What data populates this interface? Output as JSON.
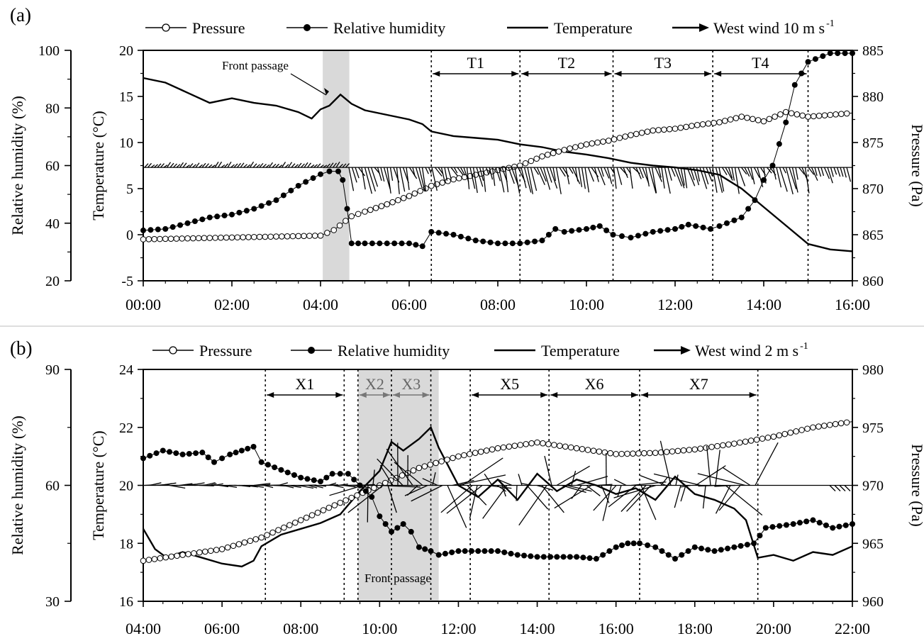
{
  "chart_data": [
    {
      "panel_label": "(a)",
      "type": "line",
      "x_axis": {
        "ticks": [
          "00:00",
          "02:00",
          "04:00",
          "06:00",
          "08:00",
          "10:00",
          "12:00",
          "14:00",
          "16:00"
        ],
        "range_hours": [
          0,
          16
        ]
      },
      "axes": {
        "rh": {
          "label": "Relative humidity (%)",
          "range": [
            20,
            100
          ],
          "ticks": [
            20,
            40,
            60,
            80,
            100
          ]
        },
        "temp": {
          "label": "Temperature (°C)",
          "range": [
            -5,
            20
          ],
          "ticks": [
            -5,
            0,
            5,
            10,
            15,
            20
          ]
        },
        "pressure": {
          "label": "Pressure (Pa)",
          "range": [
            860,
            885
          ],
          "ticks": [
            860,
            865,
            870,
            875,
            880,
            885
          ]
        }
      },
      "legend": [
        {
          "key": "pressure",
          "label": "Pressure"
        },
        {
          "key": "rh",
          "label": "Relative humidity"
        },
        {
          "key": "temp",
          "label": "Temperature"
        },
        {
          "key": "wind",
          "label": "West wind 10 m s",
          "sup": "-1"
        }
      ],
      "shaded_band": {
        "start": 4.05,
        "end": 4.65,
        "label": "Front passage"
      },
      "periods": [
        {
          "label": "T1",
          "start": 6.5,
          "end": 8.5
        },
        {
          "label": "T2",
          "start": 8.5,
          "end": 10.6
        },
        {
          "label": "T3",
          "start": 10.6,
          "end": 12.85
        },
        {
          "label": "T4",
          "start": 12.85,
          "end": 15.0
        }
      ],
      "wind_baseline": 7.3,
      "series": {
        "temp": [
          [
            0,
            17
          ],
          [
            0.5,
            16.5
          ],
          [
            1,
            15.4
          ],
          [
            1.5,
            14.3
          ],
          [
            2,
            14.8
          ],
          [
            2.5,
            14.3
          ],
          [
            3,
            14
          ],
          [
            3.5,
            13.3
          ],
          [
            3.8,
            12.6
          ],
          [
            4,
            13.6
          ],
          [
            4.2,
            14
          ],
          [
            4.45,
            15.2
          ],
          [
            4.7,
            14.2
          ],
          [
            5,
            13.5
          ],
          [
            5.5,
            13
          ],
          [
            6,
            12.5
          ],
          [
            6.3,
            12
          ],
          [
            6.5,
            11.2
          ],
          [
            7,
            10.7
          ],
          [
            7.5,
            10.5
          ],
          [
            8,
            10.3
          ],
          [
            8.5,
            9.8
          ],
          [
            9,
            9.5
          ],
          [
            9.5,
            9
          ],
          [
            10,
            8.7
          ],
          [
            10.5,
            8.3
          ],
          [
            11,
            7.8
          ],
          [
            11.5,
            7.5
          ],
          [
            12,
            7.3
          ],
          [
            12.5,
            7
          ],
          [
            13,
            6.5
          ],
          [
            13.5,
            5
          ],
          [
            14,
            3
          ],
          [
            14.5,
            1
          ],
          [
            15,
            -1
          ],
          [
            15.5,
            -1.6
          ],
          [
            16,
            -1.8
          ]
        ],
        "rh": [
          [
            0,
            37.5
          ],
          [
            0.5,
            38
          ],
          [
            1,
            40
          ],
          [
            1.5,
            42
          ],
          [
            2,
            43
          ],
          [
            2.5,
            45
          ],
          [
            3,
            48
          ],
          [
            3.5,
            53
          ],
          [
            4,
            57
          ],
          [
            4.2,
            58
          ],
          [
            4.4,
            58
          ],
          [
            4.5,
            55
          ],
          [
            4.6,
            45
          ],
          [
            4.7,
            33
          ],
          [
            5,
            33
          ],
          [
            5.5,
            33
          ],
          [
            6,
            33
          ],
          [
            6.3,
            32
          ],
          [
            6.5,
            37
          ],
          [
            7,
            36
          ],
          [
            7.5,
            34
          ],
          [
            8,
            33
          ],
          [
            8.5,
            33
          ],
          [
            9,
            34
          ],
          [
            9.3,
            38
          ],
          [
            9.5,
            37
          ],
          [
            10,
            38
          ],
          [
            10.3,
            39
          ],
          [
            10.6,
            36
          ],
          [
            11,
            35
          ],
          [
            11.5,
            37
          ],
          [
            12,
            38
          ],
          [
            12.3,
            39.5
          ],
          [
            12.8,
            38
          ],
          [
            13,
            39
          ],
          [
            13.5,
            42
          ],
          [
            13.8,
            48
          ],
          [
            14,
            55
          ],
          [
            14.2,
            60
          ],
          [
            14.5,
            75
          ],
          [
            14.7,
            88
          ],
          [
            15,
            96
          ],
          [
            15.5,
            99
          ],
          [
            16,
            99
          ]
        ],
        "pressure": [
          [
            0,
            864.5
          ],
          [
            1,
            864.6
          ],
          [
            2,
            864.7
          ],
          [
            3,
            864.8
          ],
          [
            4,
            864.9
          ],
          [
            4.3,
            865.5
          ],
          [
            4.7,
            867
          ],
          [
            5,
            867.5
          ],
          [
            5.5,
            868.3
          ],
          [
            6,
            869.2
          ],
          [
            6.5,
            870.3
          ],
          [
            7,
            871
          ],
          [
            7.5,
            871.5
          ],
          [
            8,
            872
          ],
          [
            8.5,
            872.5
          ],
          [
            9,
            873.5
          ],
          [
            9.5,
            874.2
          ],
          [
            10,
            874.8
          ],
          [
            10.5,
            875.2
          ],
          [
            11,
            875.8
          ],
          [
            11.5,
            876.3
          ],
          [
            12,
            876.5
          ],
          [
            12.5,
            876.9
          ],
          [
            13,
            877.2
          ],
          [
            13.5,
            877.8
          ],
          [
            14,
            877.3
          ],
          [
            14.5,
            878.3
          ],
          [
            15,
            877.8
          ],
          [
            15.5,
            878
          ],
          [
            16,
            878.2
          ]
        ]
      }
    },
    {
      "panel_label": "(b)",
      "type": "line",
      "x_axis": {
        "ticks": [
          "04:00",
          "06:00",
          "08:00",
          "10:00",
          "12:00",
          "14:00",
          "16:00",
          "18:00",
          "20:00",
          "22:00"
        ],
        "range_hours": [
          4,
          22
        ]
      },
      "axes": {
        "rh": {
          "label": "Relative humidity (%)",
          "range": [
            30,
            90
          ],
          "ticks": [
            30,
            60,
            90
          ]
        },
        "temp": {
          "label": "Temperature (°C)",
          "range": [
            16,
            24
          ],
          "ticks": [
            16,
            18,
            20,
            22,
            24
          ]
        },
        "pressure": {
          "label": "Pressure (Pa)",
          "range": [
            960,
            980
          ],
          "ticks": [
            960,
            965,
            970,
            975,
            980
          ]
        }
      },
      "legend": [
        {
          "key": "pressure",
          "label": "Pressure"
        },
        {
          "key": "rh",
          "label": "Relative humidity"
        },
        {
          "key": "temp",
          "label": "Temperature"
        },
        {
          "key": "wind",
          "label": "West wind 2 m s",
          "sup": "-1"
        }
      ],
      "shaded_band": {
        "start": 9.45,
        "end": 11.5,
        "label": "Front passage"
      },
      "periods": [
        {
          "label": "X1",
          "start": 7.1,
          "end": 9.1
        },
        {
          "label": "X2",
          "start": 9.45,
          "end": 10.3,
          "muted": true
        },
        {
          "label": "X3",
          "start": 10.3,
          "end": 11.3,
          "muted": true
        },
        {
          "label": "X5",
          "start": 12.3,
          "end": 14.3
        },
        {
          "label": "X6",
          "start": 14.3,
          "end": 16.6
        },
        {
          "label": "X7",
          "start": 16.6,
          "end": 19.6
        }
      ],
      "wind_baseline": 20,
      "series": {
        "temp": [
          [
            4,
            18.5
          ],
          [
            4.3,
            17.8
          ],
          [
            4.6,
            17.5
          ],
          [
            5,
            17.7
          ],
          [
            5.5,
            17.5
          ],
          [
            6,
            17.3
          ],
          [
            6.5,
            17.2
          ],
          [
            6.8,
            17.4
          ],
          [
            7,
            17.9
          ],
          [
            7.5,
            18.3
          ],
          [
            8,
            18.5
          ],
          [
            8.5,
            18.7
          ],
          [
            9,
            19
          ],
          [
            9.5,
            19.8
          ],
          [
            10,
            20.5
          ],
          [
            10.3,
            21.5
          ],
          [
            10.6,
            21.2
          ],
          [
            11,
            21.6
          ],
          [
            11.3,
            22
          ],
          [
            11.5,
            21.3
          ],
          [
            12,
            20
          ],
          [
            12.5,
            19.6
          ],
          [
            13,
            20.2
          ],
          [
            13.5,
            19.5
          ],
          [
            14,
            20.4
          ],
          [
            14.5,
            19.8
          ],
          [
            15,
            20.2
          ],
          [
            15.5,
            20
          ],
          [
            16,
            19.7
          ],
          [
            16.5,
            19.9
          ],
          [
            17,
            19.5
          ],
          [
            17.5,
            20.3
          ],
          [
            18,
            19.7
          ],
          [
            18.5,
            19.5
          ],
          [
            19,
            19.2
          ],
          [
            19.3,
            18.8
          ],
          [
            19.6,
            17.5
          ],
          [
            20,
            17.6
          ],
          [
            20.5,
            17.4
          ],
          [
            21,
            17.7
          ],
          [
            21.5,
            17.6
          ],
          [
            22,
            17.9
          ]
        ],
        "rh": [
          [
            4,
            67
          ],
          [
            4.5,
            69
          ],
          [
            5,
            68
          ],
          [
            5.5,
            68.5
          ],
          [
            5.8,
            66
          ],
          [
            6.2,
            68
          ],
          [
            6.5,
            69
          ],
          [
            6.8,
            70
          ],
          [
            7,
            66
          ],
          [
            7.5,
            64
          ],
          [
            8,
            62
          ],
          [
            8.5,
            61
          ],
          [
            8.8,
            63
          ],
          [
            9.2,
            63
          ],
          [
            9.5,
            60
          ],
          [
            9.8,
            57
          ],
          [
            10,
            52
          ],
          [
            10.3,
            48
          ],
          [
            10.6,
            50
          ],
          [
            10.8,
            48
          ],
          [
            11,
            44
          ],
          [
            11.3,
            43
          ],
          [
            11.5,
            42
          ],
          [
            12,
            43
          ],
          [
            12.5,
            43
          ],
          [
            13,
            43
          ],
          [
            13.5,
            42
          ],
          [
            14,
            41.5
          ],
          [
            14.5,
            41.5
          ],
          [
            15,
            41.5
          ],
          [
            15.5,
            41
          ],
          [
            16,
            44
          ],
          [
            16.3,
            45
          ],
          [
            16.6,
            45
          ],
          [
            17,
            44
          ],
          [
            17.5,
            41
          ],
          [
            18,
            44
          ],
          [
            18.5,
            43
          ],
          [
            19,
            44
          ],
          [
            19.5,
            45
          ],
          [
            19.8,
            49
          ],
          [
            20.5,
            50
          ],
          [
            21,
            51
          ],
          [
            21.5,
            49
          ],
          [
            22,
            50
          ]
        ],
        "pressure": [
          [
            4,
            963.5
          ],
          [
            5,
            964
          ],
          [
            6,
            964.5
          ],
          [
            7,
            965.5
          ],
          [
            8,
            967
          ],
          [
            9,
            968.5
          ],
          [
            10,
            970
          ],
          [
            11,
            971.5
          ],
          [
            12,
            972.5
          ],
          [
            13,
            973.2
          ],
          [
            14,
            973.7
          ],
          [
            15,
            973.2
          ],
          [
            16,
            972.7
          ],
          [
            17,
            972.8
          ],
          [
            18,
            973.1
          ],
          [
            19,
            973.6
          ],
          [
            20,
            974.2
          ],
          [
            21,
            975
          ],
          [
            22,
            975.5
          ]
        ]
      }
    }
  ]
}
